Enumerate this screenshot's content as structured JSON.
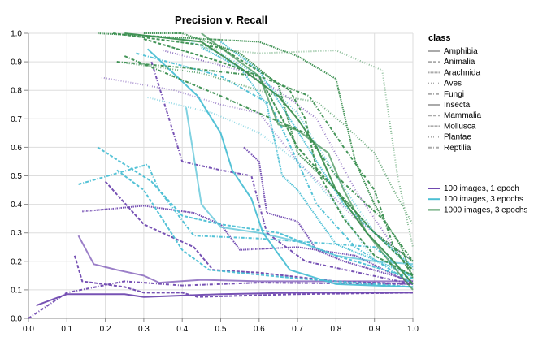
{
  "chart_data": {
    "type": "line",
    "title": "Precision v. Recall",
    "xlabel": "",
    "ylabel": "",
    "xlim": [
      0,
      1
    ],
    "ylim": [
      0,
      1
    ],
    "x_ticks": [
      "0.0",
      "0.1",
      "0.2",
      "0.3",
      "0.4",
      "0.5",
      "0.6",
      "0.7",
      "0.8",
      "0.9",
      "1.0"
    ],
    "y_ticks": [
      "0.0",
      "0.1",
      "0.2",
      "0.3",
      "0.4",
      "0.5",
      "0.6",
      "0.7",
      "0.8",
      "0.9",
      "1.0"
    ],
    "grid": true,
    "legend_placement": "right",
    "class_legend": {
      "title": "class",
      "items": [
        {
          "name": "Amphibia",
          "dash": "solid"
        },
        {
          "name": "Animalia",
          "dash": "dashed"
        },
        {
          "name": "Arachnida",
          "dash": "dotted"
        },
        {
          "name": "Aves",
          "dash": "sparse-dotted"
        },
        {
          "name": "Fungi",
          "dash": "dash-dot"
        },
        {
          "name": "Insecta",
          "dash": "solid"
        },
        {
          "name": "Mammalia",
          "dash": "dashed"
        },
        {
          "name": "Mollusca",
          "dash": "dotted"
        },
        {
          "name": "Plantae",
          "dash": "sparse-dotted"
        },
        {
          "name": "Reptilia",
          "dash": "dash-dot"
        }
      ]
    },
    "model_legend": [
      {
        "name": "100 images, 1 epoch",
        "color": "#7049b0"
      },
      {
        "name": "100 images, 3 epochs",
        "color": "#4bbfd4"
      },
      {
        "name": "1000 images, 3 epochs",
        "color": "#3b8f50"
      }
    ],
    "series": [
      {
        "model": "100 images, 1 epoch",
        "class": "Amphibia",
        "points": [
          [
            0.02,
            0.045
          ],
          [
            0.1,
            0.085
          ],
          [
            0.25,
            0.085
          ],
          [
            0.3,
            0.075
          ],
          [
            0.5,
            0.085
          ],
          [
            0.7,
            0.09
          ],
          [
            1.0,
            0.09
          ]
        ]
      },
      {
        "model": "100 images, 1 epoch",
        "class": "Insecta",
        "points": [
          [
            0.13,
            0.29
          ],
          [
            0.17,
            0.19
          ],
          [
            0.23,
            0.17
          ],
          [
            0.3,
            0.15
          ],
          [
            0.34,
            0.125
          ],
          [
            0.45,
            0.135
          ],
          [
            0.6,
            0.13
          ],
          [
            1.0,
            0.13
          ]
        ]
      },
      {
        "model": "100 images, 1 epoch",
        "class": "Animalia",
        "points": [
          [
            0.12,
            0.22
          ],
          [
            0.14,
            0.13
          ],
          [
            0.25,
            0.11
          ],
          [
            0.3,
            0.09
          ],
          [
            0.4,
            0.09
          ],
          [
            0.44,
            0.075
          ],
          [
            0.7,
            0.085
          ],
          [
            1.0,
            0.09
          ]
        ]
      },
      {
        "model": "100 images, 1 epoch",
        "class": "Reptilia",
        "points": [
          [
            0.0,
            0.0
          ],
          [
            0.1,
            0.09
          ],
          [
            0.25,
            0.13
          ],
          [
            0.4,
            0.115
          ],
          [
            0.6,
            0.125
          ],
          [
            1.0,
            0.12
          ]
        ]
      },
      {
        "model": "100 images, 1 epoch",
        "class": "Mammalia",
        "points": [
          [
            0.2,
            0.48
          ],
          [
            0.3,
            0.33
          ],
          [
            0.43,
            0.25
          ],
          [
            0.48,
            0.17
          ],
          [
            0.6,
            0.16
          ],
          [
            0.8,
            0.13
          ],
          [
            1.0,
            0.12
          ]
        ]
      },
      {
        "model": "100 images, 1 epoch",
        "class": "Arachnida",
        "points": [
          [
            0.14,
            0.375
          ],
          [
            0.3,
            0.395
          ],
          [
            0.43,
            0.37
          ],
          [
            0.5,
            0.33
          ],
          [
            0.55,
            0.24
          ],
          [
            0.7,
            0.25
          ],
          [
            0.85,
            0.22
          ],
          [
            1.0,
            0.12
          ]
        ]
      },
      {
        "model": "100 images, 1 epoch",
        "class": "Mollusca",
        "points": [
          [
            0.56,
            0.6
          ],
          [
            0.6,
            0.55
          ],
          [
            0.62,
            0.37
          ],
          [
            0.7,
            0.34
          ],
          [
            0.75,
            0.24
          ],
          [
            0.82,
            0.2
          ],
          [
            1.0,
            0.13
          ]
        ]
      },
      {
        "model": "100 images, 1 epoch",
        "class": "Fungi",
        "points": [
          [
            0.32,
            0.9
          ],
          [
            0.4,
            0.55
          ],
          [
            0.5,
            0.52
          ],
          [
            0.58,
            0.5
          ],
          [
            0.62,
            0.3
          ],
          [
            0.72,
            0.2
          ],
          [
            1.0,
            0.12
          ]
        ]
      },
      {
        "model": "100 images, 1 epoch",
        "class": "Aves",
        "points": [
          [
            0.19,
            0.845
          ],
          [
            0.38,
            0.8
          ],
          [
            0.5,
            0.75
          ],
          [
            0.6,
            0.72
          ],
          [
            0.7,
            0.55
          ],
          [
            0.85,
            0.35
          ],
          [
            1.0,
            0.2
          ]
        ]
      },
      {
        "model": "100 images, 1 epoch",
        "class": "Plantae",
        "points": [
          [
            0.35,
            0.94
          ],
          [
            0.55,
            0.87
          ],
          [
            0.65,
            0.8
          ],
          [
            0.75,
            0.7
          ],
          [
            0.85,
            0.45
          ],
          [
            1.0,
            0.15
          ]
        ]
      },
      {
        "model": "100 images, 3 epochs",
        "class": "Amphibia",
        "points": [
          [
            0.31,
            0.945
          ],
          [
            0.44,
            0.78
          ],
          [
            0.5,
            0.65
          ],
          [
            0.53,
            0.52
          ],
          [
            0.58,
            0.42
          ],
          [
            0.61,
            0.3
          ],
          [
            0.68,
            0.17
          ],
          [
            0.8,
            0.12
          ],
          [
            1.0,
            0.11
          ]
        ]
      },
      {
        "model": "100 images, 3 epochs",
        "class": "Insecta",
        "points": [
          [
            0.41,
            0.74
          ],
          [
            0.45,
            0.4
          ],
          [
            0.5,
            0.32
          ],
          [
            0.6,
            0.3
          ],
          [
            0.7,
            0.27
          ],
          [
            0.8,
            0.22
          ],
          [
            0.9,
            0.2
          ],
          [
            1.0,
            0.19
          ]
        ]
      },
      {
        "model": "100 images, 3 epochs",
        "class": "Animalia",
        "points": [
          [
            0.18,
            0.6
          ],
          [
            0.32,
            0.48
          ],
          [
            0.4,
            0.36
          ],
          [
            0.5,
            0.33
          ],
          [
            0.65,
            0.3
          ],
          [
            0.8,
            0.22
          ],
          [
            1.0,
            0.14
          ]
        ]
      },
      {
        "model": "100 images, 3 epochs",
        "class": "Mammalia",
        "points": [
          [
            0.23,
            0.52
          ],
          [
            0.3,
            0.45
          ],
          [
            0.4,
            0.24
          ],
          [
            0.47,
            0.17
          ],
          [
            0.7,
            0.14
          ],
          [
            1.0,
            0.11
          ]
        ]
      },
      {
        "model": "100 images, 3 epochs",
        "class": "Fungi",
        "points": [
          [
            0.13,
            0.47
          ],
          [
            0.31,
            0.54
          ],
          [
            0.34,
            0.45
          ],
          [
            0.43,
            0.29
          ],
          [
            0.6,
            0.28
          ],
          [
            0.8,
            0.26
          ],
          [
            0.9,
            0.25
          ],
          [
            1.0,
            0.14
          ]
        ]
      },
      {
        "model": "100 images, 3 epochs",
        "class": "Reptilia",
        "points": [
          [
            0.28,
            0.93
          ],
          [
            0.5,
            0.85
          ],
          [
            0.63,
            0.75
          ],
          [
            0.7,
            0.55
          ],
          [
            0.75,
            0.4
          ],
          [
            0.85,
            0.25
          ],
          [
            1.0,
            0.12
          ]
        ]
      },
      {
        "model": "100 images, 3 epochs",
        "class": "Arachnida",
        "points": [
          [
            0.45,
            0.95
          ],
          [
            0.55,
            0.88
          ],
          [
            0.62,
            0.75
          ],
          [
            0.66,
            0.5
          ],
          [
            0.7,
            0.45
          ],
          [
            0.8,
            0.26
          ],
          [
            1.0,
            0.15
          ]
        ]
      },
      {
        "model": "100 images, 3 epochs",
        "class": "Aves",
        "points": [
          [
            0.31,
            0.775
          ],
          [
            0.48,
            0.72
          ],
          [
            0.6,
            0.65
          ],
          [
            0.7,
            0.55
          ],
          [
            0.8,
            0.4
          ],
          [
            0.9,
            0.2
          ],
          [
            1.0,
            0.15
          ]
        ]
      },
      {
        "model": "100 images, 3 epochs",
        "class": "Plantae",
        "points": [
          [
            0.4,
            0.98
          ],
          [
            0.5,
            0.93
          ],
          [
            0.6,
            0.85
          ],
          [
            0.7,
            0.72
          ],
          [
            0.8,
            0.5
          ],
          [
            0.9,
            0.3
          ],
          [
            1.0,
            0.17
          ]
        ]
      },
      {
        "model": "100 images, 3 epochs",
        "class": "Mollusca",
        "points": [
          [
            0.5,
            0.97
          ],
          [
            0.6,
            0.87
          ],
          [
            0.68,
            0.7
          ],
          [
            0.75,
            0.55
          ],
          [
            0.82,
            0.4
          ],
          [
            0.9,
            0.3
          ],
          [
            1.0,
            0.18
          ]
        ]
      },
      {
        "model": "1000 images, 3 epochs",
        "class": "Amphibia",
        "points": [
          [
            0.25,
            1.0
          ],
          [
            0.45,
            0.97
          ],
          [
            0.55,
            0.88
          ],
          [
            0.65,
            0.78
          ],
          [
            0.7,
            0.7
          ],
          [
            0.75,
            0.6
          ],
          [
            0.8,
            0.45
          ],
          [
            0.88,
            0.3
          ],
          [
            0.95,
            0.2
          ],
          [
            1.0,
            0.12
          ]
        ]
      },
      {
        "model": "1000 images, 3 epochs",
        "class": "Insecta",
        "points": [
          [
            0.45,
            1.0
          ],
          [
            0.6,
            0.85
          ],
          [
            0.65,
            0.68
          ],
          [
            0.7,
            0.66
          ],
          [
            0.78,
            0.58
          ],
          [
            0.82,
            0.45
          ],
          [
            0.88,
            0.3
          ],
          [
            0.95,
            0.18
          ],
          [
            1.0,
            0.1
          ]
        ]
      },
      {
        "model": "1000 images, 3 epochs",
        "class": "Animalia",
        "points": [
          [
            0.22,
            1.0
          ],
          [
            0.5,
            0.95
          ],
          [
            0.68,
            0.8
          ],
          [
            0.72,
            0.7
          ],
          [
            0.75,
            0.52
          ],
          [
            0.82,
            0.35
          ],
          [
            0.9,
            0.22
          ],
          [
            1.0,
            0.15
          ]
        ]
      },
      {
        "model": "1000 images, 3 epochs",
        "class": "Mammalia",
        "points": [
          [
            0.3,
            0.98
          ],
          [
            0.5,
            0.9
          ],
          [
            0.6,
            0.85
          ],
          [
            0.7,
            0.6
          ],
          [
            0.8,
            0.45
          ],
          [
            0.9,
            0.3
          ],
          [
            1.0,
            0.17
          ]
        ]
      },
      {
        "model": "1000 images, 3 epochs",
        "class": "Fungi",
        "points": [
          [
            0.23,
            0.9
          ],
          [
            0.4,
            0.88
          ],
          [
            0.6,
            0.85
          ],
          [
            0.73,
            0.78
          ],
          [
            0.82,
            0.6
          ],
          [
            0.9,
            0.45
          ],
          [
            0.95,
            0.25
          ],
          [
            1.0,
            0.15
          ]
        ]
      },
      {
        "model": "1000 images, 3 epochs",
        "class": "Reptilia",
        "points": [
          [
            0.25,
            0.92
          ],
          [
            0.5,
            0.78
          ],
          [
            0.6,
            0.72
          ],
          [
            0.72,
            0.65
          ],
          [
            0.8,
            0.5
          ],
          [
            0.92,
            0.35
          ],
          [
            1.0,
            0.2
          ]
        ]
      },
      {
        "model": "1000 images, 3 epochs",
        "class": "Arachnida",
        "points": [
          [
            0.3,
            1.0
          ],
          [
            0.4,
            1.0
          ],
          [
            0.55,
            0.93
          ],
          [
            0.65,
            0.82
          ],
          [
            0.7,
            0.58
          ],
          [
            0.8,
            0.45
          ],
          [
            0.9,
            0.3
          ],
          [
            1.0,
            0.2
          ]
        ]
      },
      {
        "model": "1000 images, 3 epochs",
        "class": "Mollusca",
        "points": [
          [
            0.18,
            1.0
          ],
          [
            0.6,
            0.97
          ],
          [
            0.7,
            0.92
          ],
          [
            0.8,
            0.84
          ],
          [
            0.85,
            0.55
          ],
          [
            0.9,
            0.4
          ],
          [
            0.97,
            0.25
          ],
          [
            1.0,
            0.14
          ]
        ]
      },
      {
        "model": "1000 images, 3 epochs",
        "class": "Aves",
        "points": [
          [
            0.45,
            0.95
          ],
          [
            0.6,
            0.93
          ],
          [
            0.8,
            0.94
          ],
          [
            0.92,
            0.87
          ],
          [
            0.96,
            0.5
          ],
          [
            1.0,
            0.25
          ]
        ]
      },
      {
        "model": "1000 images, 3 epochs",
        "class": "Plantae",
        "points": [
          [
            0.23,
            0.9
          ],
          [
            0.45,
            0.86
          ],
          [
            0.65,
            0.78
          ],
          [
            0.75,
            0.76
          ],
          [
            0.82,
            0.68
          ],
          [
            0.9,
            0.58
          ],
          [
            0.95,
            0.45
          ],
          [
            1.0,
            0.33
          ]
        ]
      }
    ]
  }
}
